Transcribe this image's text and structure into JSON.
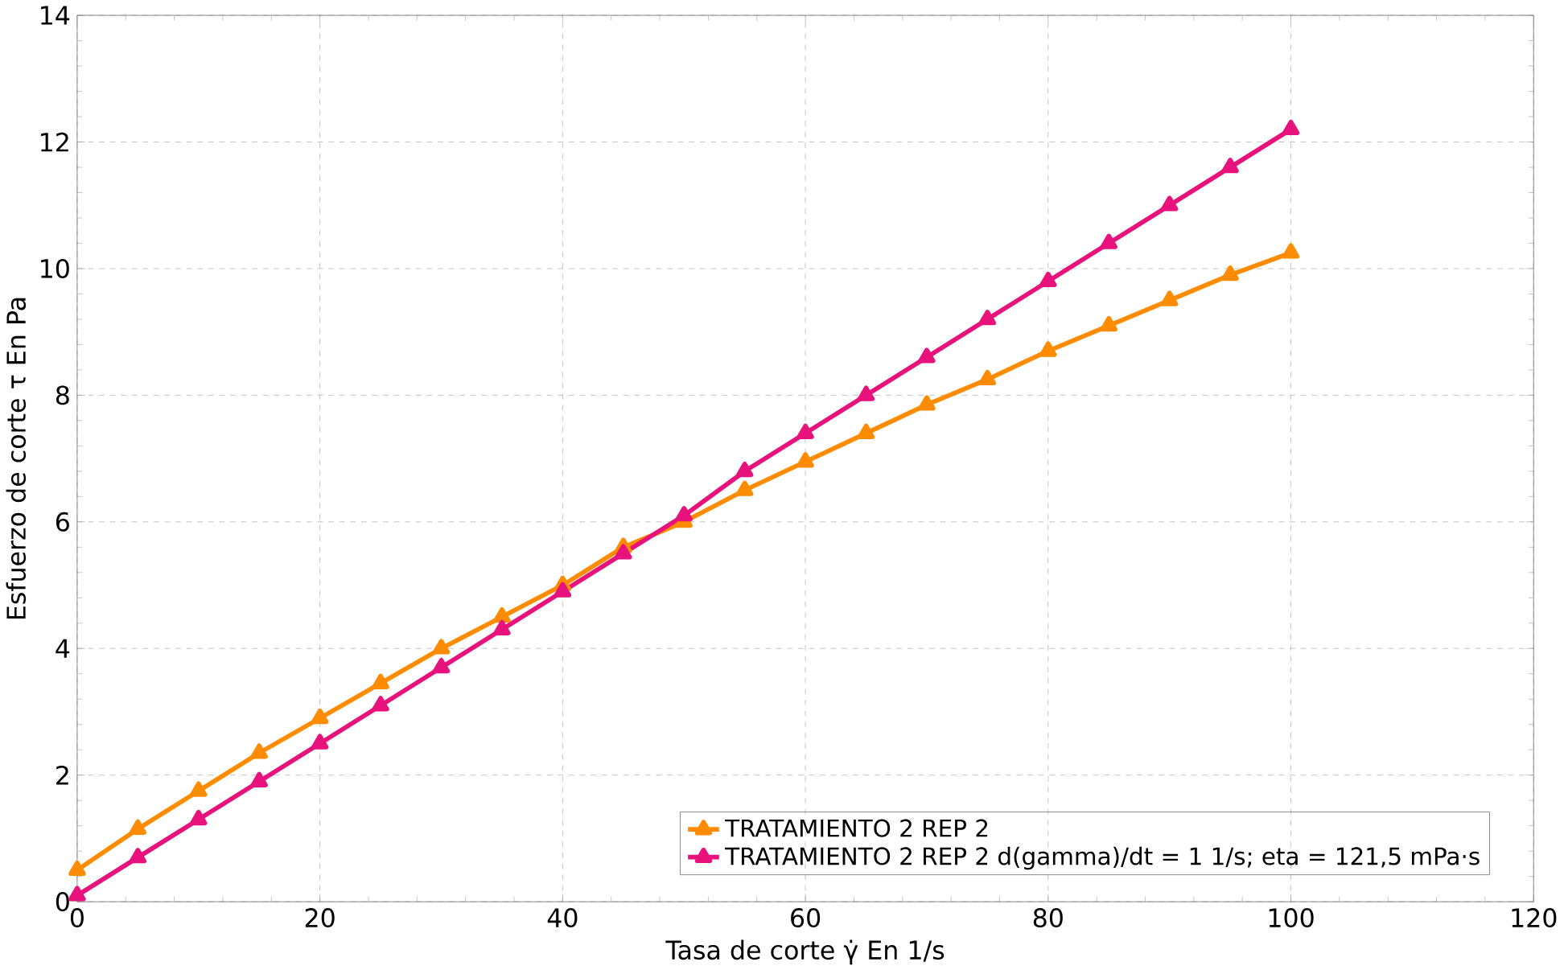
{
  "chart_data": {
    "type": "line",
    "xlabel": "Tasa de corte γ̇ En 1/s",
    "ylabel": "Esfuerzo de corte τ En Pa",
    "x": [
      0,
      5,
      10,
      15,
      20,
      25,
      30,
      35,
      40,
      45,
      50,
      55,
      60,
      65,
      70,
      75,
      80,
      85,
      90,
      95,
      100
    ],
    "series": [
      {
        "name": "TRATAMIENTO 2 REP 2",
        "color": "#ff8c00",
        "values": [
          0.5,
          1.15,
          1.75,
          2.35,
          2.9,
          3.45,
          4.0,
          4.5,
          5.0,
          5.6,
          6.0,
          6.5,
          6.95,
          7.4,
          7.85,
          8.25,
          8.7,
          9.1,
          9.5,
          9.9,
          10.25
        ]
      },
      {
        "name": "TRATAMIENTO 2 REP 2 d(gamma)/dt = 1 1/s; eta = 121,5 mPa·s",
        "color": "#e8127c",
        "values": [
          0.1,
          0.7,
          1.3,
          1.9,
          2.5,
          3.1,
          3.7,
          4.3,
          4.9,
          5.5,
          6.1,
          6.8,
          7.4,
          8.0,
          8.6,
          9.2,
          9.8,
          10.4,
          11.0,
          11.6,
          12.2
        ]
      }
    ],
    "xlim": [
      0,
      120
    ],
    "ylim": [
      0,
      14
    ],
    "xticks": [
      0,
      20,
      40,
      60,
      80,
      100,
      120
    ],
    "yticks": [
      0,
      2,
      4,
      6,
      8,
      10,
      12,
      14
    ],
    "grid": true,
    "legend": "bottom right",
    "marker": "triangle",
    "line_style": "solid"
  }
}
